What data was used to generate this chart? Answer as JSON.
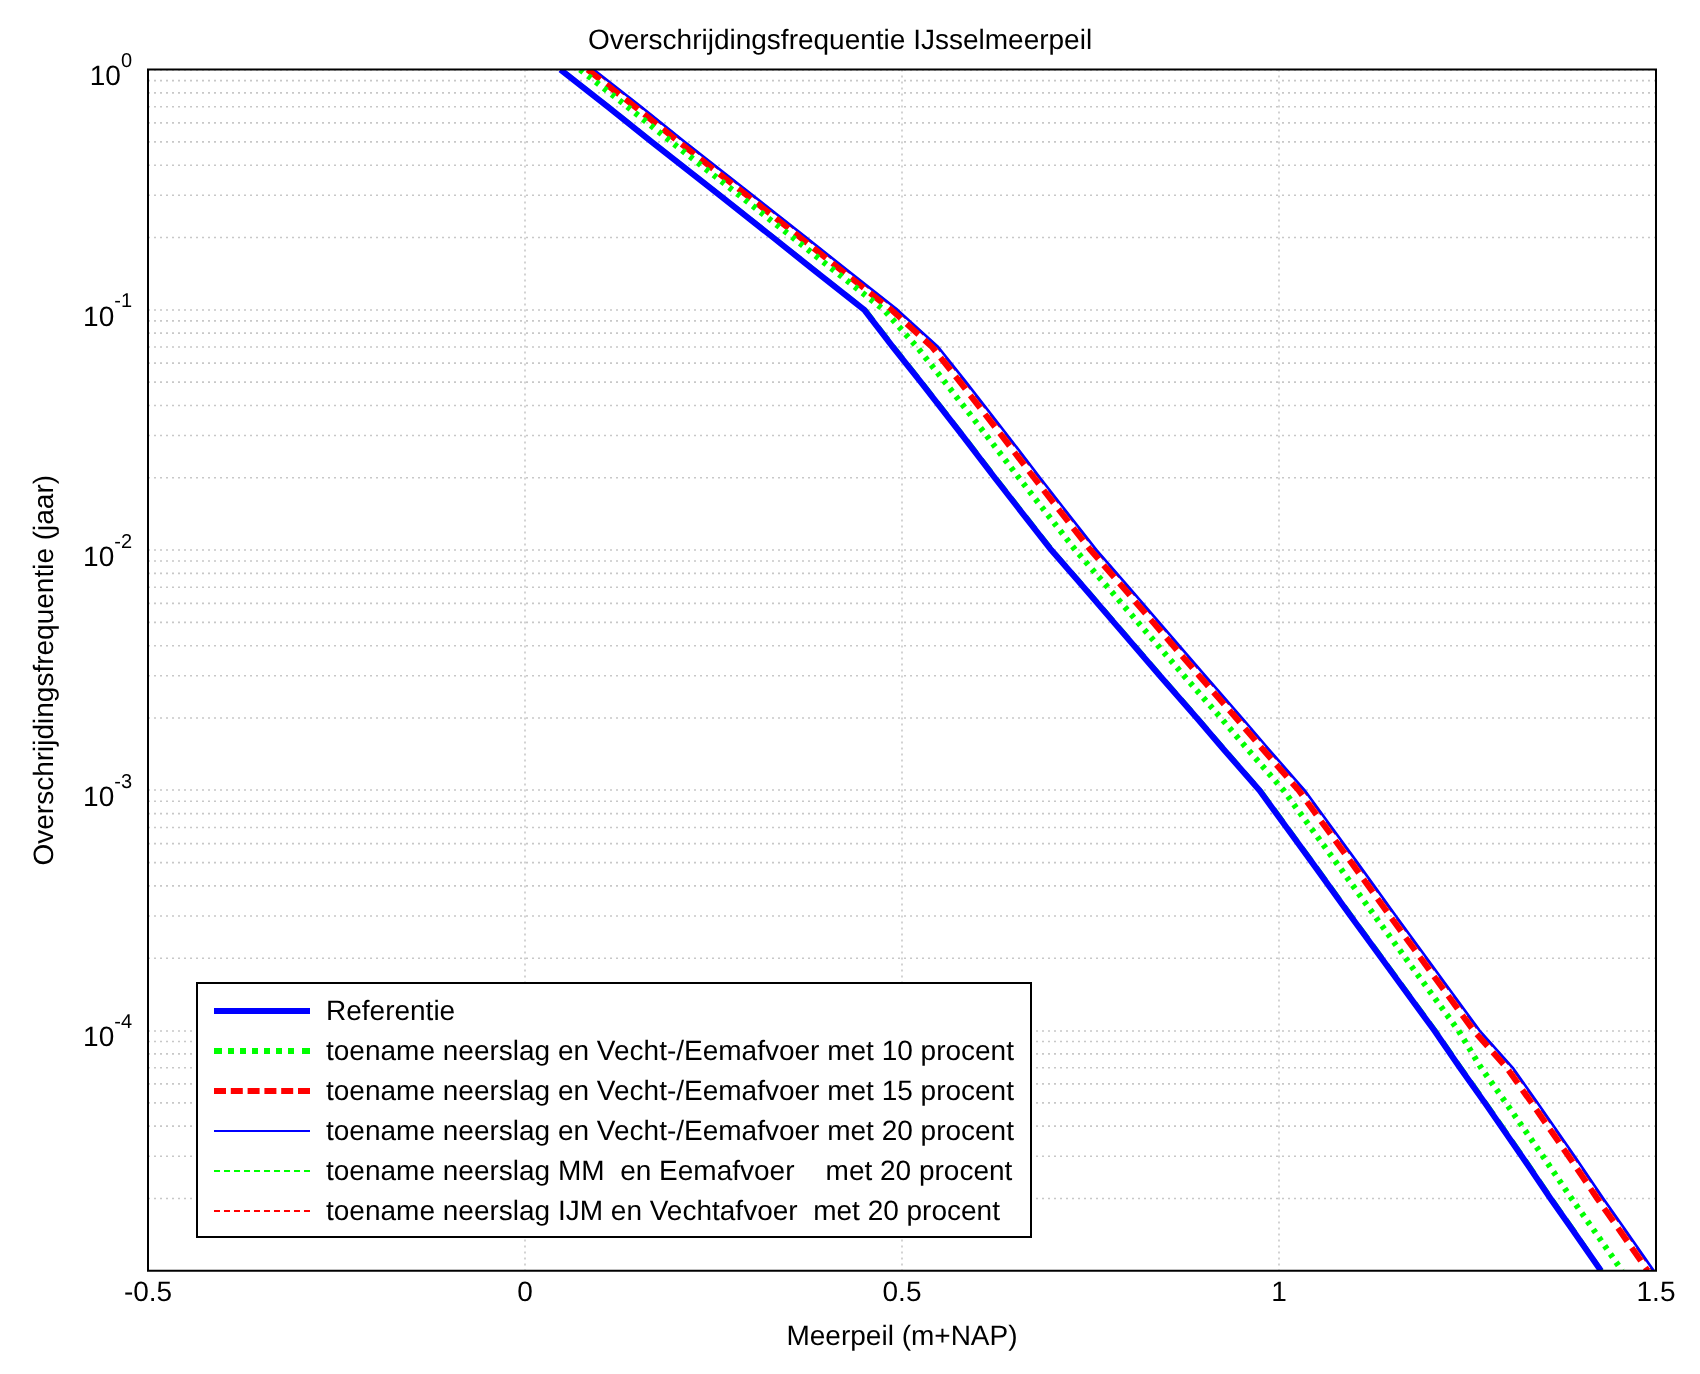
{
  "chart_data": {
    "type": "line",
    "title": "Overschrijdingsfrequentie IJsselmeerpeil",
    "xlabel": "Meerpeil (m+NAP)",
    "ylabel": "Overschrijdingsfrequentie (jaar)",
    "xlim": [
      -0.5,
      1.5
    ],
    "xticks": [
      -0.5,
      0,
      0.5,
      1,
      1.5
    ],
    "ylim": [
      1e-05,
      1
    ],
    "yticks": [
      {
        "value": 1,
        "label": "10$^{0}$"
      },
      {
        "value": 0.1,
        "label": "10$^{-1}$"
      },
      {
        "value": 0.01,
        "label": "10$^{-2}$"
      },
      {
        "value": 0.001,
        "label": "10$^{-3}$"
      },
      {
        "value": 0.0001,
        "label": "10$^{-4}$"
      }
    ],
    "log": "y",
    "grid": true,
    "legend": "bottom left",
    "marker": "none",
    "series": [
      {
        "name": "Referentie",
        "color": "#0000ff",
        "line_style": "solid",
        "x": [
          0.047,
          0.11,
          0.168,
          0.258,
          0.329,
          0.379,
          0.45,
          0.488,
          0.525,
          0.58,
          0.623,
          0.654,
          0.698,
          0.741,
          0.781,
          0.842,
          0.891,
          0.925,
          0.974,
          1.01,
          1.044,
          1.095,
          1.136,
          1.165,
          1.206,
          1.24,
          1.273,
          1.322,
          1.36,
          1.388,
          1.427
        ],
        "values": [
          1,
          0.7,
          0.5,
          0.3,
          0.2,
          0.15,
          0.1,
          0.07,
          0.05,
          0.03,
          0.02,
          0.015,
          0.01,
          0.007,
          0.005,
          0.003,
          0.002,
          0.0015,
          0.001,
          0.0007,
          0.0005,
          0.0003,
          0.0002,
          0.00015,
          0.0001,
          7e-05,
          5e-05,
          3e-05,
          2e-05,
          1.5e-05,
          1e-05
        ]
      },
      {
        "name": "toename neerslag en Vecht-/Eemafvoer met 10 procent",
        "color": "#00ff00",
        "line_style": "dotted",
        "x": [
          0.073,
          0.136,
          0.194,
          0.284,
          0.355,
          0.405,
          0.476,
          0.52,
          0.557,
          0.612,
          0.655,
          0.686,
          0.73,
          0.773,
          0.813,
          0.874,
          0.923,
          0.957,
          1.006,
          1.042,
          1.076,
          1.127,
          1.168,
          1.197,
          1.238,
          1.268,
          1.301,
          1.35,
          1.388,
          1.416,
          1.455
        ],
        "values": [
          1,
          0.7,
          0.5,
          0.3,
          0.2,
          0.15,
          0.1,
          0.07,
          0.05,
          0.03,
          0.02,
          0.015,
          0.01,
          0.007,
          0.005,
          0.003,
          0.002,
          0.0015,
          0.001,
          0.0007,
          0.0005,
          0.0003,
          0.0002,
          0.00015,
          0.0001,
          7e-05,
          5e-05,
          3e-05,
          2e-05,
          1.5e-05,
          1e-05
        ]
      },
      {
        "name": "toename neerslag en Vecht-/Eemafvoer met 15 procent",
        "color": "#ff0000",
        "line_style": "dashed",
        "x": [
          0.083,
          0.146,
          0.204,
          0.294,
          0.365,
          0.415,
          0.486,
          0.54,
          0.577,
          0.632,
          0.675,
          0.706,
          0.75,
          0.793,
          0.833,
          0.894,
          0.943,
          0.977,
          1.026,
          1.062,
          1.096,
          1.147,
          1.188,
          1.217,
          1.258,
          1.302,
          1.335,
          1.384,
          1.422,
          1.45,
          1.489
        ],
        "values": [
          1,
          0.7,
          0.5,
          0.3,
          0.2,
          0.15,
          0.1,
          0.07,
          0.05,
          0.03,
          0.02,
          0.015,
          0.01,
          0.007,
          0.005,
          0.003,
          0.002,
          0.0015,
          0.001,
          0.0007,
          0.0005,
          0.0003,
          0.0002,
          0.00015,
          0.0001,
          7e-05,
          5e-05,
          3e-05,
          2e-05,
          1.5e-05,
          1e-05
        ]
      },
      {
        "name": "toename neerslag en Vecht-/Eemafvoer met 20 procent",
        "color": "#0000ff",
        "line_style": "solid",
        "x": [
          0.091,
          0.154,
          0.212,
          0.302,
          0.373,
          0.423,
          0.494,
          0.548,
          0.585,
          0.64,
          0.683,
          0.714,
          0.758,
          0.801,
          0.841,
          0.902,
          0.951,
          0.985,
          1.034,
          1.07,
          1.104,
          1.155,
          1.196,
          1.225,
          1.266,
          1.31,
          1.343,
          1.392,
          1.43,
          1.458,
          1.497
        ],
        "values": [
          1,
          0.7,
          0.5,
          0.3,
          0.2,
          0.15,
          0.1,
          0.07,
          0.05,
          0.03,
          0.02,
          0.015,
          0.01,
          0.007,
          0.005,
          0.003,
          0.002,
          0.0015,
          0.001,
          0.0007,
          0.0005,
          0.0003,
          0.0002,
          0.00015,
          0.0001,
          7e-05,
          5e-05,
          3e-05,
          2e-05,
          1.5e-05,
          1e-05
        ]
      },
      {
        "name": "toename neerslag MM  en Eemafvoer    met 20 procent",
        "color": "#00ff00",
        "line_style": "dashed",
        "x": [
          0.05,
          0.113,
          0.171,
          0.261,
          0.332,
          0.382,
          0.453,
          0.491,
          0.528,
          0.583,
          0.626,
          0.657,
          0.701,
          0.744,
          0.784,
          0.845,
          0.894,
          0.928,
          0.977,
          1.013,
          1.047,
          1.098,
          1.139,
          1.168,
          1.209,
          1.243,
          1.276,
          1.325,
          1.363,
          1.391,
          1.429
        ],
        "values": [
          1,
          0.7,
          0.5,
          0.3,
          0.2,
          0.15,
          0.1,
          0.07,
          0.05,
          0.03,
          0.02,
          0.015,
          0.01,
          0.007,
          0.005,
          0.003,
          0.002,
          0.0015,
          0.001,
          0.0007,
          0.0005,
          0.0003,
          0.0002,
          0.00015,
          0.0001,
          7e-05,
          5e-05,
          3e-05,
          2e-05,
          1.5e-05,
          1e-05
        ]
      },
      {
        "name": "toename neerslag IJM en Vechtafvoer  met 20 procent",
        "color": "#ff0000",
        "line_style": "dashed",
        "x": [
          0.09,
          0.153,
          0.211,
          0.301,
          0.372,
          0.422,
          0.493,
          0.547,
          0.584,
          0.639,
          0.682,
          0.713,
          0.757,
          0.8,
          0.84,
          0.901,
          0.95,
          0.984,
          1.033,
          1.069,
          1.103,
          1.154,
          1.195,
          1.224,
          1.265,
          1.309,
          1.342,
          1.391,
          1.429,
          1.457,
          1.496
        ],
        "values": [
          1,
          0.7,
          0.5,
          0.3,
          0.2,
          0.15,
          0.1,
          0.07,
          0.05,
          0.03,
          0.02,
          0.015,
          0.01,
          0.007,
          0.005,
          0.003,
          0.002,
          0.0015,
          0.001,
          0.0007,
          0.0005,
          0.0003,
          0.0002,
          0.00015,
          0.0001,
          7e-05,
          5e-05,
          3e-05,
          2e-05,
          1.5e-05,
          1e-05
        ]
      }
    ]
  }
}
